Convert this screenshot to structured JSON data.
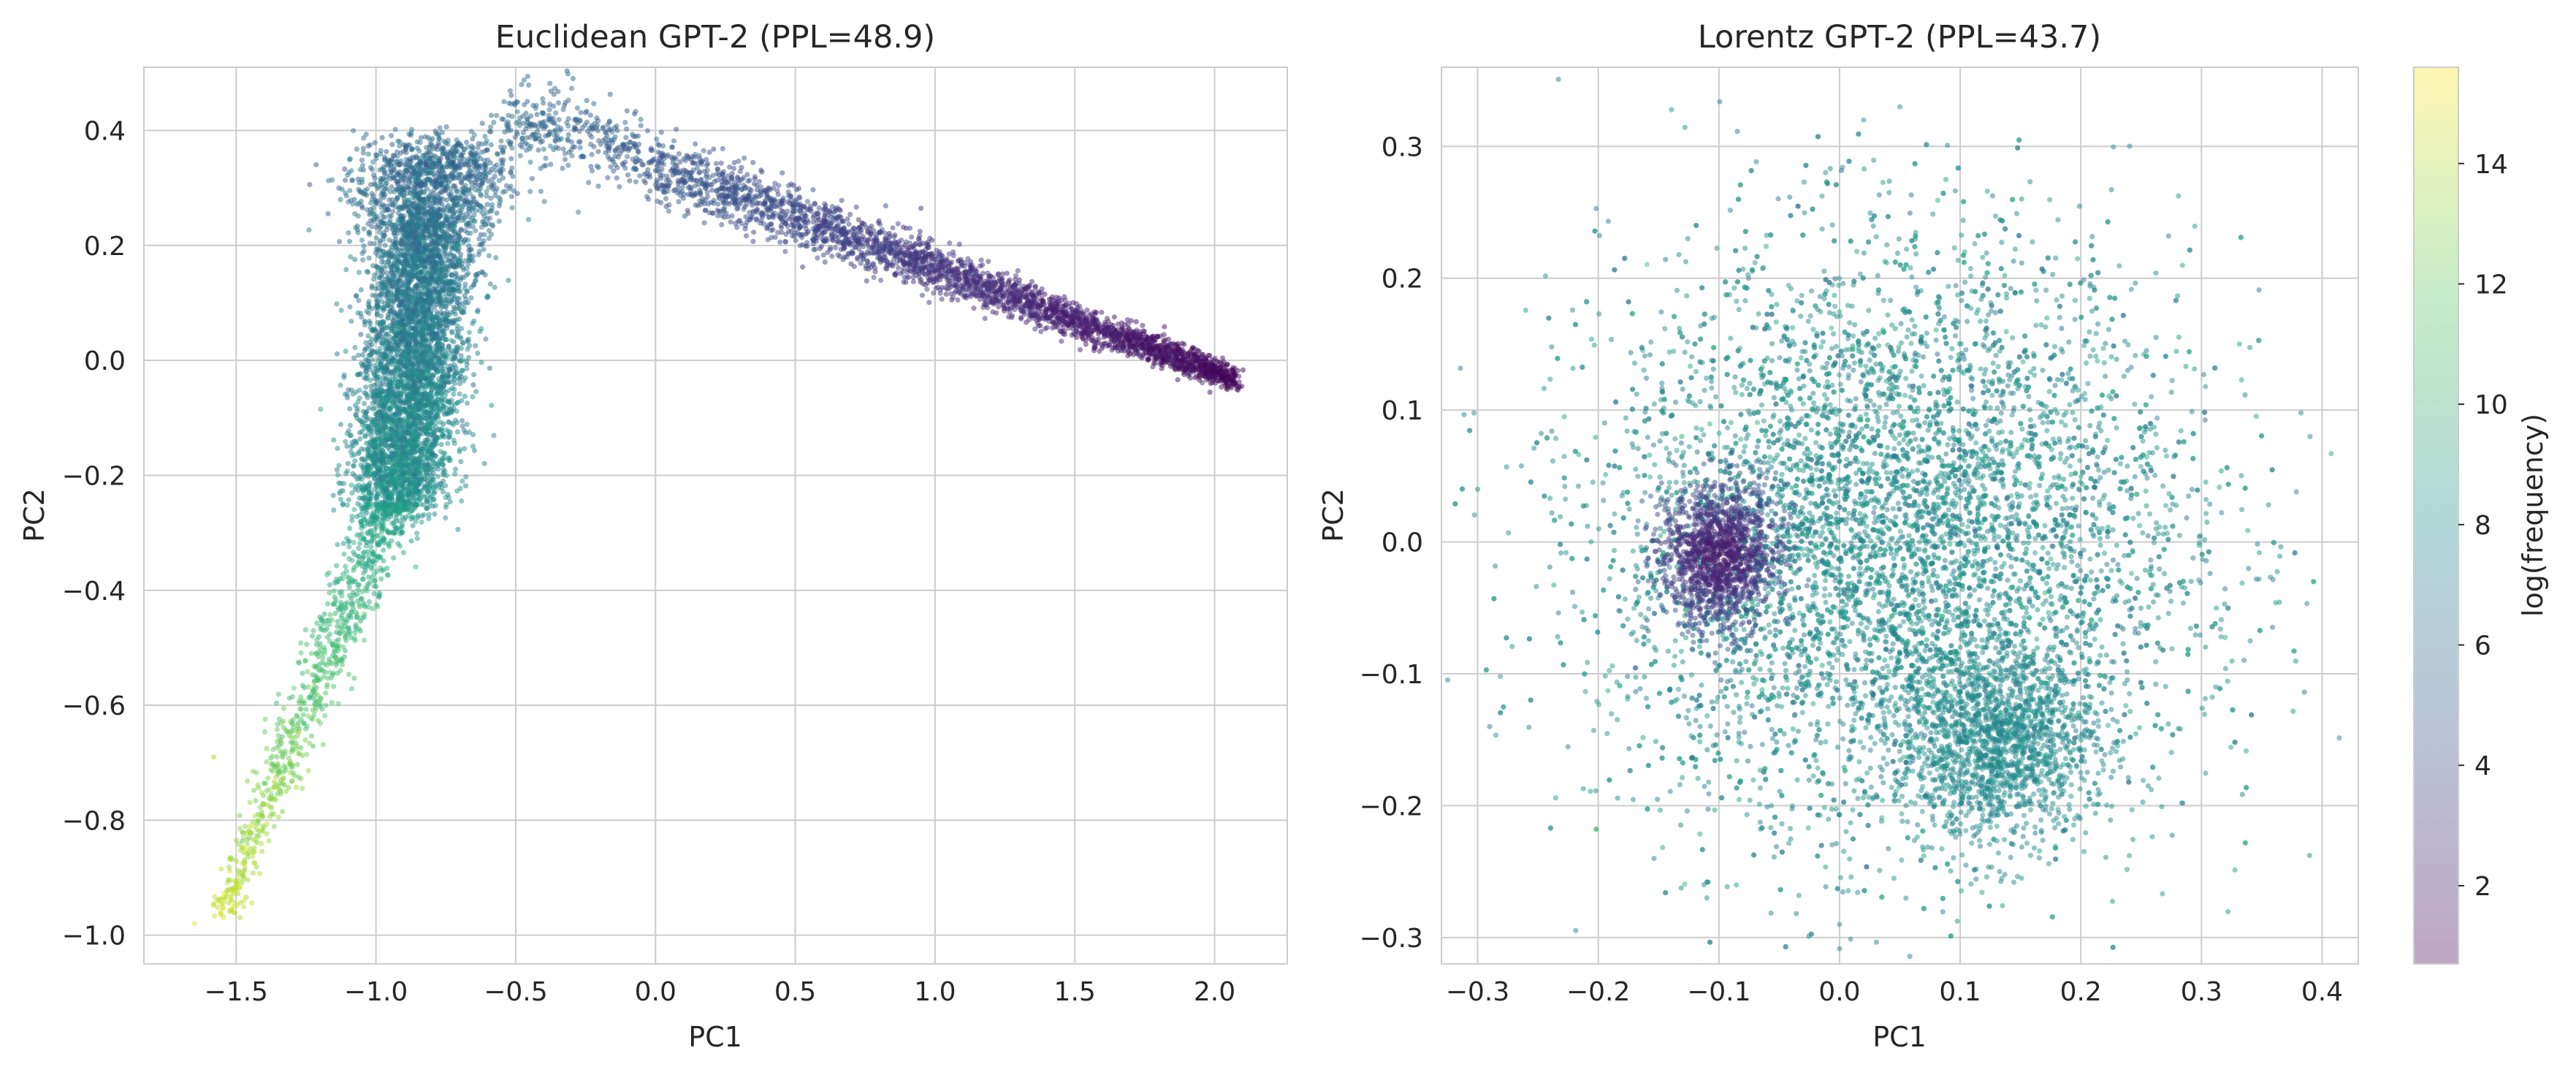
{
  "chart_data": [
    {
      "type": "scatter",
      "title": "Euclidean GPT-2 (PPL=48.9)",
      "xlabel": "PC1",
      "ylabel": "PC2",
      "xlim": [
        -1.83,
        2.26
      ],
      "ylim": [
        -1.05,
        0.51
      ],
      "xticks": [
        -1.5,
        -1.0,
        -0.5,
        0.0,
        0.5,
        1.0,
        1.5,
        2.0
      ],
      "xtick_labels": [
        "−1.5",
        "−1.0",
        "−0.5",
        "0.0",
        "0.5",
        "1.0",
        "1.5",
        "2.0"
      ],
      "yticks": [
        -1.0,
        -0.8,
        -0.6,
        -0.4,
        -0.2,
        0.0,
        0.2,
        0.4
      ],
      "ytick_labels": [
        "−1.0",
        "−0.8",
        "−0.6",
        "−0.4",
        "−0.2",
        "0.0",
        "0.2",
        "0.4"
      ],
      "grid": true,
      "color_by": "log(frequency)",
      "colormap": "viridis",
      "point_alpha": 0.45,
      "structure": [
        {
          "region": "dense main cluster",
          "x_range": [
            -1.05,
            -0.6
          ],
          "y_range": [
            -0.25,
            0.38
          ],
          "log_frequency": [
            6,
            9
          ]
        },
        {
          "region": "lower tail",
          "x_range": [
            -1.65,
            -1.0
          ],
          "y_range": [
            -0.98,
            -0.25
          ],
          "log_frequency": [
            9,
            15
          ]
        },
        {
          "region": "upper arc / diagonal band",
          "x_range": [
            -0.6,
            2.08
          ],
          "y_range": [
            -0.05,
            0.43
          ],
          "log_frequency": [
            1,
            6
          ]
        }
      ],
      "points": [
        {
          "x": -1.65,
          "y": -0.98,
          "log_freq": 14.8
        },
        {
          "x": -1.58,
          "y": -0.69,
          "log_freq": 13.5
        },
        {
          "x": -1.52,
          "y": -0.92,
          "log_freq": 13.9
        },
        {
          "x": -1.45,
          "y": -0.82,
          "log_freq": 14.0
        },
        {
          "x": -1.42,
          "y": -0.8,
          "log_freq": 13.2
        },
        {
          "x": -1.35,
          "y": -0.72,
          "log_freq": 12.5
        },
        {
          "x": -1.28,
          "y": -0.62,
          "log_freq": 12.0
        },
        {
          "x": -1.2,
          "y": -0.5,
          "log_freq": 11.5
        },
        {
          "x": -1.12,
          "y": -0.38,
          "log_freq": 10.8
        },
        {
          "x": -0.55,
          "y": 0.42,
          "log_freq": 5.5
        },
        {
          "x": -0.3,
          "y": 0.38,
          "log_freq": 5.0
        },
        {
          "x": 0.0,
          "y": 0.33,
          "log_freq": 4.6
        },
        {
          "x": 0.5,
          "y": 0.27,
          "log_freq": 4.0
        },
        {
          "x": 1.0,
          "y": 0.16,
          "log_freq": 3.4
        },
        {
          "x": 1.5,
          "y": 0.06,
          "log_freq": 2.8
        },
        {
          "x": 2.0,
          "y": -0.03,
          "log_freq": 1.5
        },
        {
          "x": 2.08,
          "y": -0.05,
          "log_freq": 1.0
        }
      ]
    },
    {
      "type": "scatter",
      "title": "Lorentz GPT-2 (PPL=43.7)",
      "xlabel": "PC1",
      "ylabel": "PC2",
      "xlim": [
        -0.33,
        0.43
      ],
      "ylim": [
        -0.32,
        0.36
      ],
      "xticks": [
        -0.3,
        -0.2,
        -0.1,
        0.0,
        0.1,
        0.2,
        0.3,
        0.4
      ],
      "xtick_labels": [
        "−0.3",
        "−0.2",
        "−0.1",
        "0.0",
        "0.1",
        "0.2",
        "0.3",
        "0.4"
      ],
      "yticks": [
        -0.3,
        -0.2,
        -0.1,
        0.0,
        0.1,
        0.2,
        0.3
      ],
      "ytick_labels": [
        "−0.3",
        "−0.2",
        "−0.1",
        "0.0",
        "0.1",
        "0.2",
        "0.3"
      ],
      "grid": true,
      "color_by": "log(frequency)",
      "colormap": "viridis",
      "point_alpha": 0.45,
      "structure": [
        {
          "region": "diffuse cloud",
          "x_range": [
            -0.3,
            0.39
          ],
          "y_range": [
            -0.29,
            0.33
          ],
          "log_frequency": [
            6,
            10
          ]
        },
        {
          "region": "dark cluster",
          "center": [
            -0.1,
            -0.01
          ],
          "radius": 0.05,
          "log_frequency": [
            1,
            4
          ]
        },
        {
          "region": "dense lower-right lobe",
          "center": [
            0.13,
            -0.15
          ],
          "radius": 0.06,
          "log_frequency": [
            7,
            9
          ]
        }
      ],
      "points": [
        {
          "x": -0.3,
          "y": 0.04,
          "log_freq": 7.5
        },
        {
          "x": -0.29,
          "y": -0.14,
          "log_freq": 7.0
        },
        {
          "x": -0.1,
          "y": -0.01,
          "log_freq": 1.5
        },
        {
          "x": 0.02,
          "y": 0.32,
          "log_freq": 8.0
        },
        {
          "x": 0.05,
          "y": 0.33,
          "log_freq": 8.5
        },
        {
          "x": 0.13,
          "y": -0.15,
          "log_freq": 7.8
        },
        {
          "x": 0.39,
          "y": 0.08,
          "log_freq": 8.0
        },
        {
          "x": 0.0,
          "y": -0.29,
          "log_freq": 8.2
        },
        {
          "x": -0.11,
          "y": -0.27,
          "log_freq": 8.0
        }
      ]
    }
  ],
  "colorbar": {
    "label": "log(frequency)",
    "range": [
      0.7,
      15.6
    ],
    "ticks": [
      2,
      4,
      6,
      8,
      10,
      12,
      14
    ],
    "tick_labels": [
      "2",
      "4",
      "6",
      "8",
      "10",
      "12",
      "14"
    ],
    "colormap": "viridis",
    "alpha": 0.35
  },
  "colors": {
    "grid": "#cccccc",
    "text": "#262626",
    "background": "#ffffff"
  }
}
